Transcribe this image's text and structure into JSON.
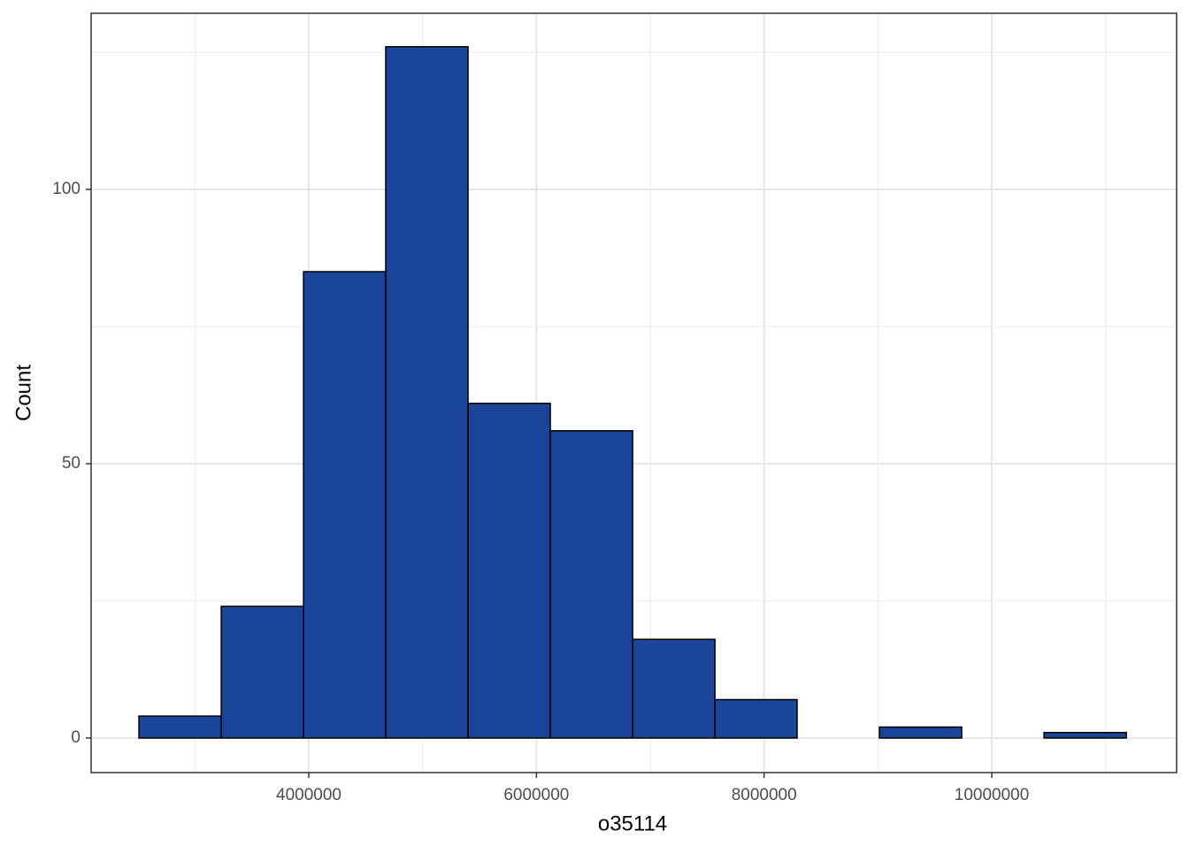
{
  "chart_data": {
    "type": "histogram",
    "x_label": "o35114",
    "y_label": "Count",
    "bins": [
      2508000,
      3231000,
      3954000,
      4676000,
      5399000,
      6122000,
      6845000,
      7568000,
      8290000,
      9013000,
      9736000,
      10459000,
      11182000
    ],
    "values": [
      4,
      24,
      85,
      126,
      61,
      56,
      18,
      7,
      0,
      2,
      0,
      1
    ],
    "color": "#1a4599",
    "edge_color": "#000000",
    "xlim": [
      2088000,
      11624000
    ],
    "ylim": [
      -6.3,
      132.1
    ],
    "xticks": [
      4000000,
      6000000,
      8000000,
      10000000
    ],
    "yticks": [
      0,
      50,
      100
    ],
    "grid": true,
    "minor_grid": true
  }
}
